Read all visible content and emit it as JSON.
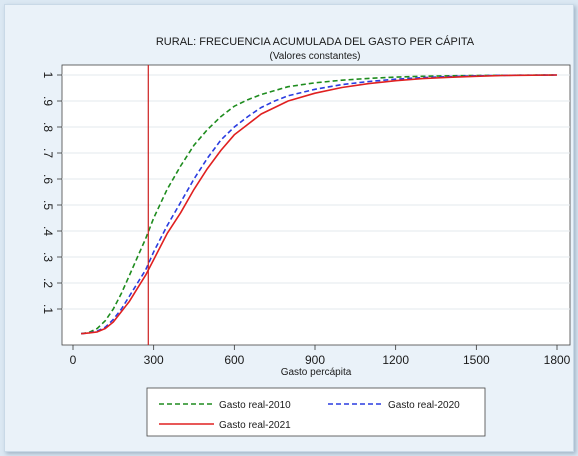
{
  "chart_data": {
    "type": "line",
    "title": "RURAL: FRECUENCIA ACUMULADA DEL GASTO PER CÁPITA",
    "subtitle": "(Valores constantes)",
    "xlabel": "Gasto percápita",
    "ylabel": "",
    "xlim": [
      0,
      1800
    ],
    "ylim": [
      0,
      1
    ],
    "x_ticks": [
      0,
      300,
      600,
      900,
      1200,
      1500,
      1800
    ],
    "x_tick_labels": [
      "0",
      "300",
      "600",
      "900",
      "1200",
      "1500",
      "1800"
    ],
    "y_ticks": [
      0.1,
      0.2,
      0.3,
      0.4,
      0.5,
      0.6,
      0.7,
      0.8,
      0.9,
      1
    ],
    "y_tick_labels": [
      ".1",
      ".2",
      ".3",
      ".4",
      ".5",
      ".6",
      ".7",
      ".8",
      ".9",
      "1"
    ],
    "grid": true,
    "legend_position": "bottom",
    "vline": {
      "x": 280,
      "color": "#cc1f1f"
    },
    "series": [
      {
        "name": "Gasto real-2010",
        "color": "#1e8c1e",
        "dash": "dashed",
        "points": [
          [
            30,
            0.005
          ],
          [
            60,
            0.01
          ],
          [
            90,
            0.025
          ],
          [
            120,
            0.055
          ],
          [
            150,
            0.1
          ],
          [
            180,
            0.16
          ],
          [
            210,
            0.23
          ],
          [
            240,
            0.3
          ],
          [
            270,
            0.37
          ],
          [
            300,
            0.45
          ],
          [
            350,
            0.56
          ],
          [
            400,
            0.65
          ],
          [
            450,
            0.73
          ],
          [
            500,
            0.79
          ],
          [
            550,
            0.84
          ],
          [
            600,
            0.88
          ],
          [
            650,
            0.905
          ],
          [
            700,
            0.925
          ],
          [
            750,
            0.94
          ],
          [
            800,
            0.955
          ],
          [
            900,
            0.97
          ],
          [
            1000,
            0.98
          ],
          [
            1100,
            0.987
          ],
          [
            1200,
            0.992
          ],
          [
            1300,
            0.995
          ],
          [
            1400,
            0.997
          ],
          [
            1500,
            0.998
          ],
          [
            1600,
            0.999
          ],
          [
            1800,
            1
          ]
        ]
      },
      {
        "name": "Gasto real-2020",
        "color": "#2a3ce0",
        "dash": "dashed",
        "points": [
          [
            30,
            0.005
          ],
          [
            60,
            0.008
          ],
          [
            90,
            0.015
          ],
          [
            120,
            0.03
          ],
          [
            150,
            0.06
          ],
          [
            180,
            0.1
          ],
          [
            210,
            0.15
          ],
          [
            240,
            0.2
          ],
          [
            270,
            0.25
          ],
          [
            300,
            0.32
          ],
          [
            350,
            0.42
          ],
          [
            400,
            0.51
          ],
          [
            450,
            0.6
          ],
          [
            500,
            0.68
          ],
          [
            550,
            0.75
          ],
          [
            600,
            0.8
          ],
          [
            650,
            0.84
          ],
          [
            700,
            0.875
          ],
          [
            750,
            0.9
          ],
          [
            800,
            0.92
          ],
          [
            900,
            0.945
          ],
          [
            1000,
            0.963
          ],
          [
            1100,
            0.975
          ],
          [
            1200,
            0.984
          ],
          [
            1300,
            0.99
          ],
          [
            1400,
            0.994
          ],
          [
            1500,
            0.997
          ],
          [
            1600,
            0.999
          ],
          [
            1800,
            1
          ]
        ]
      },
      {
        "name": "Gasto real-2021",
        "color": "#e02020",
        "dash": "solid",
        "points": [
          [
            30,
            0.005
          ],
          [
            60,
            0.008
          ],
          [
            90,
            0.012
          ],
          [
            120,
            0.025
          ],
          [
            150,
            0.05
          ],
          [
            180,
            0.09
          ],
          [
            210,
            0.13
          ],
          [
            240,
            0.18
          ],
          [
            270,
            0.23
          ],
          [
            300,
            0.29
          ],
          [
            350,
            0.39
          ],
          [
            400,
            0.47
          ],
          [
            450,
            0.56
          ],
          [
            500,
            0.64
          ],
          [
            550,
            0.71
          ],
          [
            600,
            0.77
          ],
          [
            650,
            0.81
          ],
          [
            700,
            0.85
          ],
          [
            750,
            0.875
          ],
          [
            800,
            0.9
          ],
          [
            900,
            0.93
          ],
          [
            1000,
            0.952
          ],
          [
            1100,
            0.967
          ],
          [
            1200,
            0.978
          ],
          [
            1300,
            0.986
          ],
          [
            1400,
            0.991
          ],
          [
            1500,
            0.995
          ],
          [
            1600,
            0.998
          ],
          [
            1800,
            1
          ]
        ]
      }
    ]
  }
}
